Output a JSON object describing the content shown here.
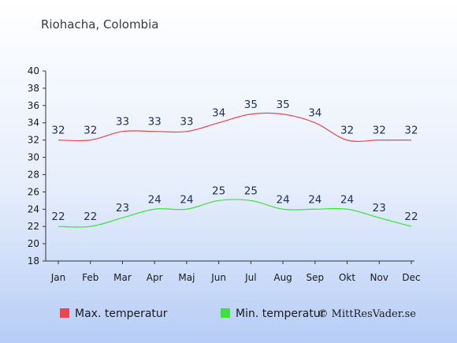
{
  "chart_data": {
    "type": "line",
    "title": "Riohacha, Colombia",
    "categories": [
      "Jan",
      "Feb",
      "Mar",
      "Apr",
      "Maj",
      "Jun",
      "Jul",
      "Aug",
      "Sep",
      "Okt",
      "Nov",
      "Dec"
    ],
    "series": [
      {
        "name": "Max. temperatur",
        "color": "#e8474c",
        "values": [
          32,
          32,
          33,
          33,
          33,
          34,
          35,
          35,
          34,
          32,
          32,
          32
        ]
      },
      {
        "name": "Min. temperatur",
        "color": "#3de03d",
        "values": [
          22,
          22,
          23,
          24,
          24,
          25,
          25,
          24,
          24,
          24,
          23,
          22
        ]
      }
    ],
    "ylim": [
      18,
      40
    ],
    "yticks": [
      18,
      20,
      22,
      24,
      26,
      28,
      30,
      32,
      34,
      36,
      38,
      40
    ],
    "grid": false,
    "legend": "bottom-left",
    "credit": "© MittResVader.se"
  }
}
